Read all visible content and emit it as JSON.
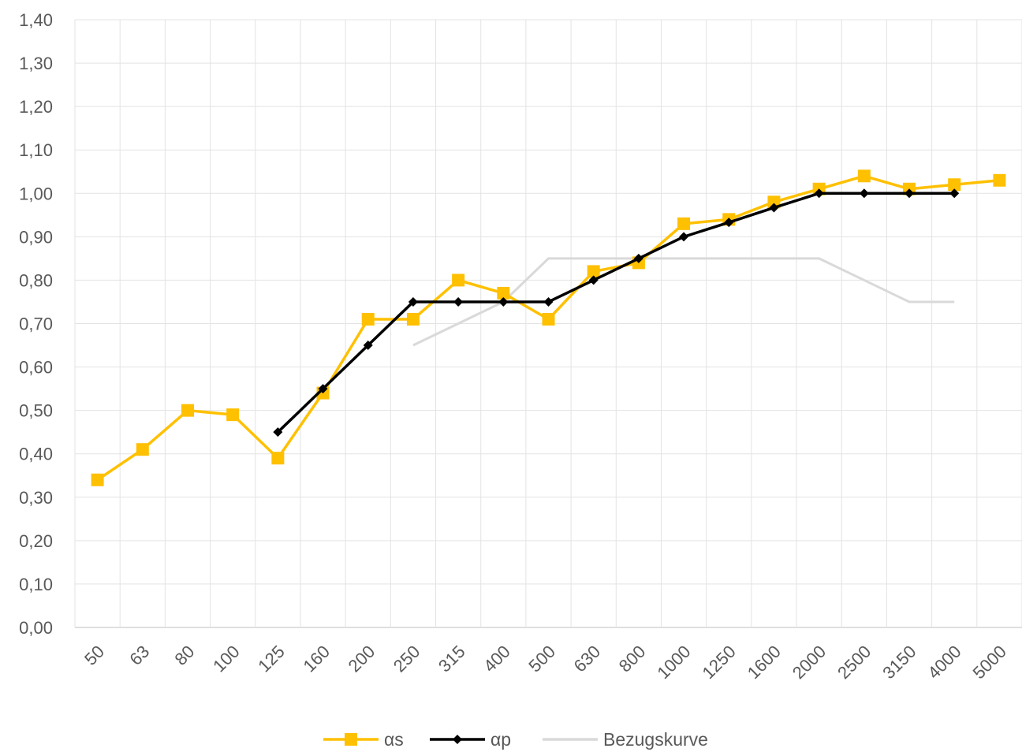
{
  "chart_data": {
    "type": "line",
    "title": "",
    "xlabel": "",
    "ylabel": "",
    "categories": [
      "50",
      "63",
      "80",
      "100",
      "125",
      "160",
      "200",
      "250",
      "315",
      "400",
      "500",
      "630",
      "800",
      "1000",
      "1250",
      "1600",
      "2000",
      "2500",
      "3150",
      "4000",
      "5000"
    ],
    "y_ticks": [
      "0,00",
      "0,10",
      "0,20",
      "0,30",
      "0,40",
      "0,50",
      "0,60",
      "0,70",
      "0,80",
      "0,90",
      "1,00",
      "1,10",
      "1,20",
      "1,30",
      "1,40"
    ],
    "ylim": [
      0,
      1.4
    ],
    "grid": true,
    "legend_position": "bottom",
    "series": [
      {
        "name": "αs",
        "color": "#FFC000",
        "marker": "square",
        "values": [
          0.34,
          0.41,
          0.5,
          0.49,
          0.39,
          0.54,
          0.71,
          0.71,
          0.8,
          0.77,
          0.71,
          0.82,
          0.84,
          0.93,
          0.94,
          0.98,
          1.01,
          1.04,
          1.01,
          1.02,
          1.03
        ]
      },
      {
        "name": "αp",
        "color": "#000000",
        "marker": "diamond",
        "values": [
          null,
          null,
          null,
          null,
          0.45,
          0.55,
          0.65,
          0.75,
          0.75,
          0.75,
          0.75,
          0.8,
          0.85,
          0.9,
          0.933,
          0.967,
          1.0,
          1.0,
          1.0,
          1.0,
          null
        ]
      },
      {
        "name": "Bezugskurve",
        "color": "#D9D9D9",
        "marker": "none",
        "values": [
          null,
          null,
          null,
          null,
          null,
          null,
          null,
          0.65,
          0.7,
          0.75,
          0.85,
          0.85,
          0.85,
          0.85,
          0.85,
          0.85,
          0.85,
          0.8,
          0.75,
          0.75,
          null
        ]
      }
    ]
  }
}
